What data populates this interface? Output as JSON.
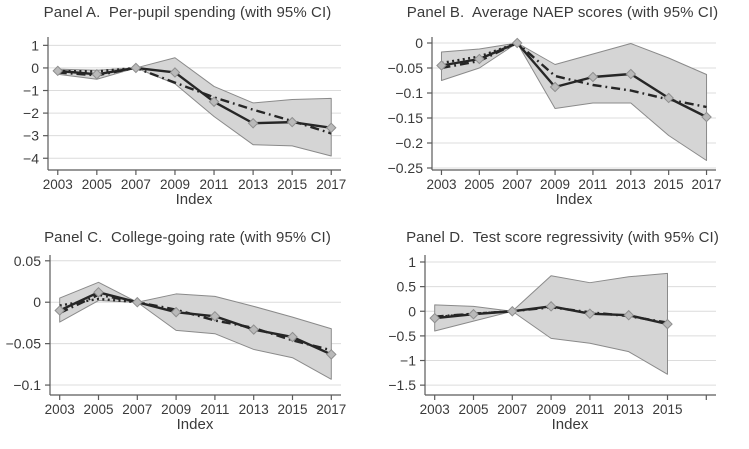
{
  "figure": {
    "xlabel": "Index",
    "colors": {
      "background": "#ffffff",
      "band_fill": "#d5d5d5",
      "band_edge": "#8a8a8a",
      "line": "#262626",
      "marker_fill": "#b9b9b9",
      "marker_edge": "#8f8f8f",
      "grid": "#dcdcdc",
      "axis": "#5a5a5a",
      "text": "#3a3a3a"
    }
  },
  "chart_data": [
    {
      "panel": "A",
      "type": "line",
      "title": "Panel A.  Per-pupil spending (with 95% CI)",
      "xlabel": "Index",
      "legend": "none",
      "grid": "horizontal",
      "ci_level": "95%",
      "x": [
        2003,
        2005,
        2007,
        2009,
        2011,
        2013,
        2015,
        2017
      ],
      "xticks": [
        2003,
        2005,
        2007,
        2009,
        2011,
        2013,
        2015,
        2017
      ],
      "xtick_labels": [
        "2003",
        "2005",
        "2007",
        "2009",
        "2011",
        "2013",
        "2015",
        "2017"
      ],
      "yticks": [
        1,
        0,
        -1,
        -2,
        -3,
        -4
      ],
      "ytick_labels": [
        "1",
        "0",
        "−1",
        "−2",
        "−3",
        "−4"
      ],
      "xlim": [
        2002.5,
        2017.5
      ],
      "ylim": [
        -4.52,
        1.37
      ],
      "ci": {
        "upper": [
          -0.05,
          -0.1,
          0,
          0.45,
          -0.82,
          -1.55,
          -1.4,
          -1.35
        ],
        "lower": [
          -0.28,
          -0.5,
          0,
          -0.7,
          -2.15,
          -3.4,
          -3.45,
          -3.9
        ]
      },
      "series": [
        {
          "name": "point-estimate",
          "line": "solid",
          "marker": "diamond",
          "values": [
            -0.13,
            -0.28,
            0,
            -0.2,
            -1.5,
            -2.45,
            -2.4,
            -2.65
          ]
        },
        {
          "name": "alternative-estimate",
          "line": "dash-dot",
          "marker": "none",
          "values": [
            -0.2,
            -0.33,
            0,
            -0.65,
            -1.3,
            -1.85,
            -2.35,
            -2.9
          ]
        },
        {
          "name": "pre-period-fit",
          "line": "dotted",
          "marker": "none",
          "values": [
            -0.14,
            -0.15,
            0,
            null,
            null,
            null,
            null,
            null
          ]
        }
      ]
    },
    {
      "panel": "B",
      "type": "line",
      "title": "Panel B.  Average NAEP scores (with 95% CI)",
      "xlabel": "Index",
      "legend": "none",
      "grid": "horizontal",
      "ci_level": "95%",
      "x": [
        2003,
        2005,
        2007,
        2009,
        2011,
        2013,
        2015,
        2017
      ],
      "xticks": [
        2003,
        2005,
        2007,
        2009,
        2011,
        2013,
        2015,
        2017
      ],
      "xtick_labels": [
        "2003",
        "2005",
        "2007",
        "2009",
        "2011",
        "2013",
        "2015",
        "2017"
      ],
      "yticks": [
        0,
        -0.05,
        -0.1,
        -0.15,
        -0.2,
        -0.25
      ],
      "ytick_labels": [
        "0",
        "−0.05",
        "−0.1",
        "−0.15",
        "−0.2",
        "−0.25"
      ],
      "xlim": [
        2002.5,
        2017.5
      ],
      "ylim": [
        -0.254,
        0.012
      ],
      "ci": {
        "upper": [
          -0.018,
          -0.012,
          0,
          -0.043,
          -0.022,
          -0.001,
          -0.03,
          -0.063
        ],
        "lower": [
          -0.075,
          -0.05,
          0,
          -0.131,
          -0.12,
          -0.12,
          -0.185,
          -0.235
        ]
      },
      "series": [
        {
          "name": "point-estimate",
          "line": "solid",
          "marker": "diamond",
          "values": [
            -0.045,
            -0.032,
            0,
            -0.088,
            -0.068,
            -0.062,
            -0.11,
            -0.148
          ]
        },
        {
          "name": "alternative-estimate",
          "line": "dash-dot",
          "marker": "none",
          "values": [
            -0.05,
            -0.036,
            0,
            -0.066,
            -0.084,
            -0.095,
            -0.113,
            -0.128
          ]
        },
        {
          "name": "pre-period-fit",
          "line": "dotted",
          "marker": "none",
          "values": [
            -0.04,
            -0.027,
            0,
            null,
            null,
            null,
            null,
            null
          ]
        }
      ]
    },
    {
      "panel": "C",
      "type": "line",
      "title": "Panel C.  College-going rate (with 95% CI)",
      "xlabel": "Index",
      "legend": "none",
      "grid": "horizontal",
      "ci_level": "95%",
      "x": [
        2003,
        2005,
        2007,
        2009,
        2011,
        2013,
        2015,
        2017
      ],
      "xticks": [
        2003,
        2005,
        2007,
        2009,
        2011,
        2013,
        2015,
        2017
      ],
      "xtick_labels": [
        "2003",
        "2005",
        "2007",
        "2009",
        "2011",
        "2013",
        "2015",
        "2017"
      ],
      "yticks": [
        0.05,
        0,
        -0.05,
        -0.1
      ],
      "ytick_labels": [
        "0.05",
        "0",
        "−0.05",
        "−0.1"
      ],
      "xlim": [
        2002.5,
        2017.5
      ],
      "ylim": [
        -0.112,
        0.057
      ],
      "ci": {
        "upper": [
          0.005,
          0.024,
          0,
          0.01,
          0.007,
          -0.005,
          -0.018,
          -0.032
        ],
        "lower": [
          -0.024,
          0.002,
          0,
          -0.034,
          -0.038,
          -0.057,
          -0.067,
          -0.093
        ]
      },
      "series": [
        {
          "name": "point-estimate",
          "line": "solid",
          "marker": "diamond",
          "values": [
            -0.01,
            0.012,
            0,
            -0.012,
            -0.017,
            -0.033,
            -0.042,
            -0.063
          ]
        },
        {
          "name": "alternative-estimate",
          "line": "dash-dot",
          "marker": "none",
          "values": [
            -0.013,
            0.009,
            0,
            -0.009,
            -0.022,
            -0.031,
            -0.046,
            -0.058
          ]
        },
        {
          "name": "pre-period-fit",
          "line": "dotted",
          "marker": "none",
          "values": [
            -0.004,
            0.004,
            0,
            null,
            null,
            null,
            null,
            null
          ]
        }
      ]
    },
    {
      "panel": "D",
      "type": "line",
      "title": "Panel D.  Test score regressivity (with 95% CI)",
      "xlabel": "Index",
      "legend": "none",
      "grid": "horizontal",
      "ci_level": "95%",
      "x": [
        2003,
        2005,
        2007,
        2009,
        2011,
        2013,
        2015
      ],
      "xticks": [
        2003,
        2005,
        2007,
        2009,
        2011,
        2013,
        2015,
        2017
      ],
      "xtick_labels": [
        "2003",
        "2005",
        "2007",
        "2009",
        "2011",
        "2013",
        "2015",
        ""
      ],
      "yticks": [
        1,
        0.5,
        0,
        -0.5,
        -1,
        -1.5
      ],
      "ytick_labels": [
        "1",
        "0.5",
        "0",
        "−0.5",
        "−1",
        "−1.5"
      ],
      "xlim": [
        2002.5,
        2017.5
      ],
      "ylim": [
        -1.7,
        1.142
      ],
      "ci": {
        "upper": [
          0.13,
          0.1,
          0,
          0.72,
          0.58,
          0.7,
          0.77
        ],
        "lower": [
          -0.4,
          -0.2,
          0,
          -0.55,
          -0.65,
          -0.82,
          -1.28
        ]
      },
      "series": [
        {
          "name": "point-estimate",
          "line": "solid",
          "marker": "diamond",
          "values": [
            -0.14,
            -0.06,
            0,
            0.1,
            -0.05,
            -0.08,
            -0.26
          ]
        },
        {
          "name": "alternative-estimate",
          "line": "dash-dot",
          "marker": "none",
          "values": [
            -0.11,
            -0.05,
            0,
            0.08,
            -0.02,
            -0.1,
            -0.23
          ]
        },
        {
          "name": "pre-period-fit",
          "line": "dotted",
          "marker": "none",
          "values": [
            -0.12,
            -0.05,
            0,
            null,
            null,
            null,
            null
          ]
        }
      ]
    }
  ]
}
